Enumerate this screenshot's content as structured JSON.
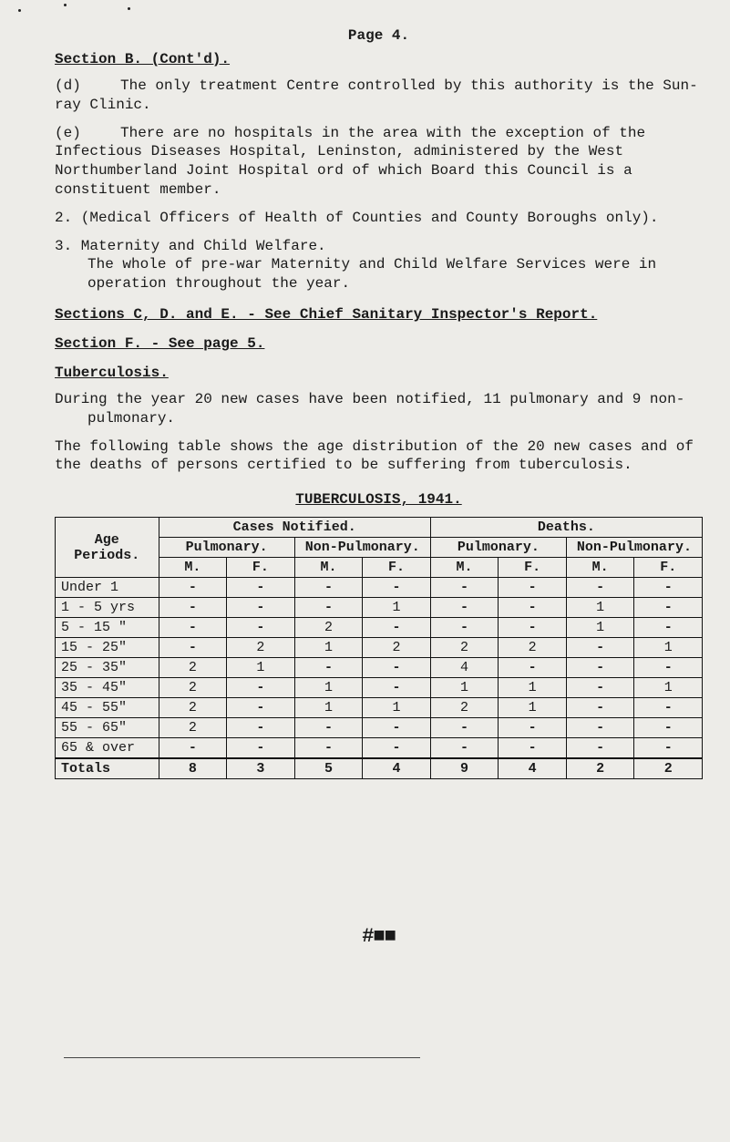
{
  "page_label": "Page 4.",
  "section_head": "Section B. (Cont'd).",
  "para_d_letter": "(d)",
  "para_d": "The only treatment Centre controlled by this authority is the Sun-ray Clinic.",
  "para_e_letter": "(e)",
  "para_e": "There are no hospitals in the area with the exception of the Infectious Diseases Hospital, Leninston, administered by the West Northumberland Joint Hospital ord of which Board this Council is a constituent member.",
  "para_2": "2. (Medical Officers of Health of Counties and County Boroughs only).",
  "para_3a": "3. Maternity and Child Welfare.",
  "para_3b": "The whole of pre-war Maternity and Child Welfare Services were in operation throughout the year.",
  "see_cde": "Sections C, D. and E. - See Chief Sanitary Inspector's Report.",
  "see_f": "Section F. - See page 5.",
  "tuberculosis": "Tuberculosis.",
  "tb_p1": "During the year 20 new cases have been notified, 11 pulmonary and 9 non-pulmonary.",
  "tb_p2": "The following table shows the age distribution of the 20 new cases and of the deaths of persons certified to be suffering from tuberculosis.",
  "table_title": "TUBERCULOSIS, 1941.",
  "tbl": {
    "col_age": "Age Periods.",
    "col_cases": "Cases Notified.",
    "col_deaths": "Deaths.",
    "col_pul": "Pulmonary.",
    "col_npul": "Non-Pulmonary.",
    "col_m": "M.",
    "col_f": "F.",
    "rows": [
      {
        "label": "Under 1",
        "c_pm": "-",
        "c_pf": "-",
        "c_nm": "-",
        "c_nf": "-",
        "d_pm": "-",
        "d_pf": "-",
        "d_nm": "-",
        "d_nf": "-"
      },
      {
        "label": "1 - 5 yrs",
        "c_pm": "-",
        "c_pf": "-",
        "c_nm": "-",
        "c_nf": "1",
        "d_pm": "-",
        "d_pf": "-",
        "d_nm": "1",
        "d_nf": "-"
      },
      {
        "label": "5 - 15 \"",
        "c_pm": "-",
        "c_pf": "-",
        "c_nm": "2",
        "c_nf": "-",
        "d_pm": "-",
        "d_pf": "-",
        "d_nm": "1",
        "d_nf": "-"
      },
      {
        "label": "15 - 25\"",
        "c_pm": "-",
        "c_pf": "2",
        "c_nm": "1",
        "c_nf": "2",
        "d_pm": "2",
        "d_pf": "2",
        "d_nm": "-",
        "d_nf": "1"
      },
      {
        "label": "25 - 35\"",
        "c_pm": "2",
        "c_pf": "1",
        "c_nm": "-",
        "c_nf": "-",
        "d_pm": "4",
        "d_pf": "-",
        "d_nm": "-",
        "d_nf": "-"
      },
      {
        "label": "35 - 45\"",
        "c_pm": "2",
        "c_pf": "-",
        "c_nm": "1",
        "c_nf": "-",
        "d_pm": "1",
        "d_pf": "1",
        "d_nm": "-",
        "d_nf": "1"
      },
      {
        "label": "45 - 55\"",
        "c_pm": "2",
        "c_pf": "-",
        "c_nm": "1",
        "c_nf": "1",
        "d_pm": "2",
        "d_pf": "1",
        "d_nm": "-",
        "d_nf": "-"
      },
      {
        "label": "55 - 65\"",
        "c_pm": "2",
        "c_pf": "-",
        "c_nm": "-",
        "c_nf": "-",
        "d_pm": "-",
        "d_pf": "-",
        "d_nm": "-",
        "d_nf": "-"
      },
      {
        "label": "65 & over",
        "c_pm": "-",
        "c_pf": "-",
        "c_nm": "-",
        "c_nf": "-",
        "d_pm": "-",
        "d_pf": "-",
        "d_nm": "-",
        "d_nf": "-"
      }
    ],
    "totals": {
      "label": "Totals",
      "c_pm": "8",
      "c_pf": "3",
      "c_nm": "5",
      "c_nf": "4",
      "d_pm": "9",
      "d_pf": "4",
      "d_nm": "2",
      "d_nf": "2"
    },
    "border_color": "#111111",
    "background": "#edece8",
    "font_size": 15
  },
  "colors": {
    "page_bg": "#edece8",
    "text": "#1a1a1a"
  }
}
